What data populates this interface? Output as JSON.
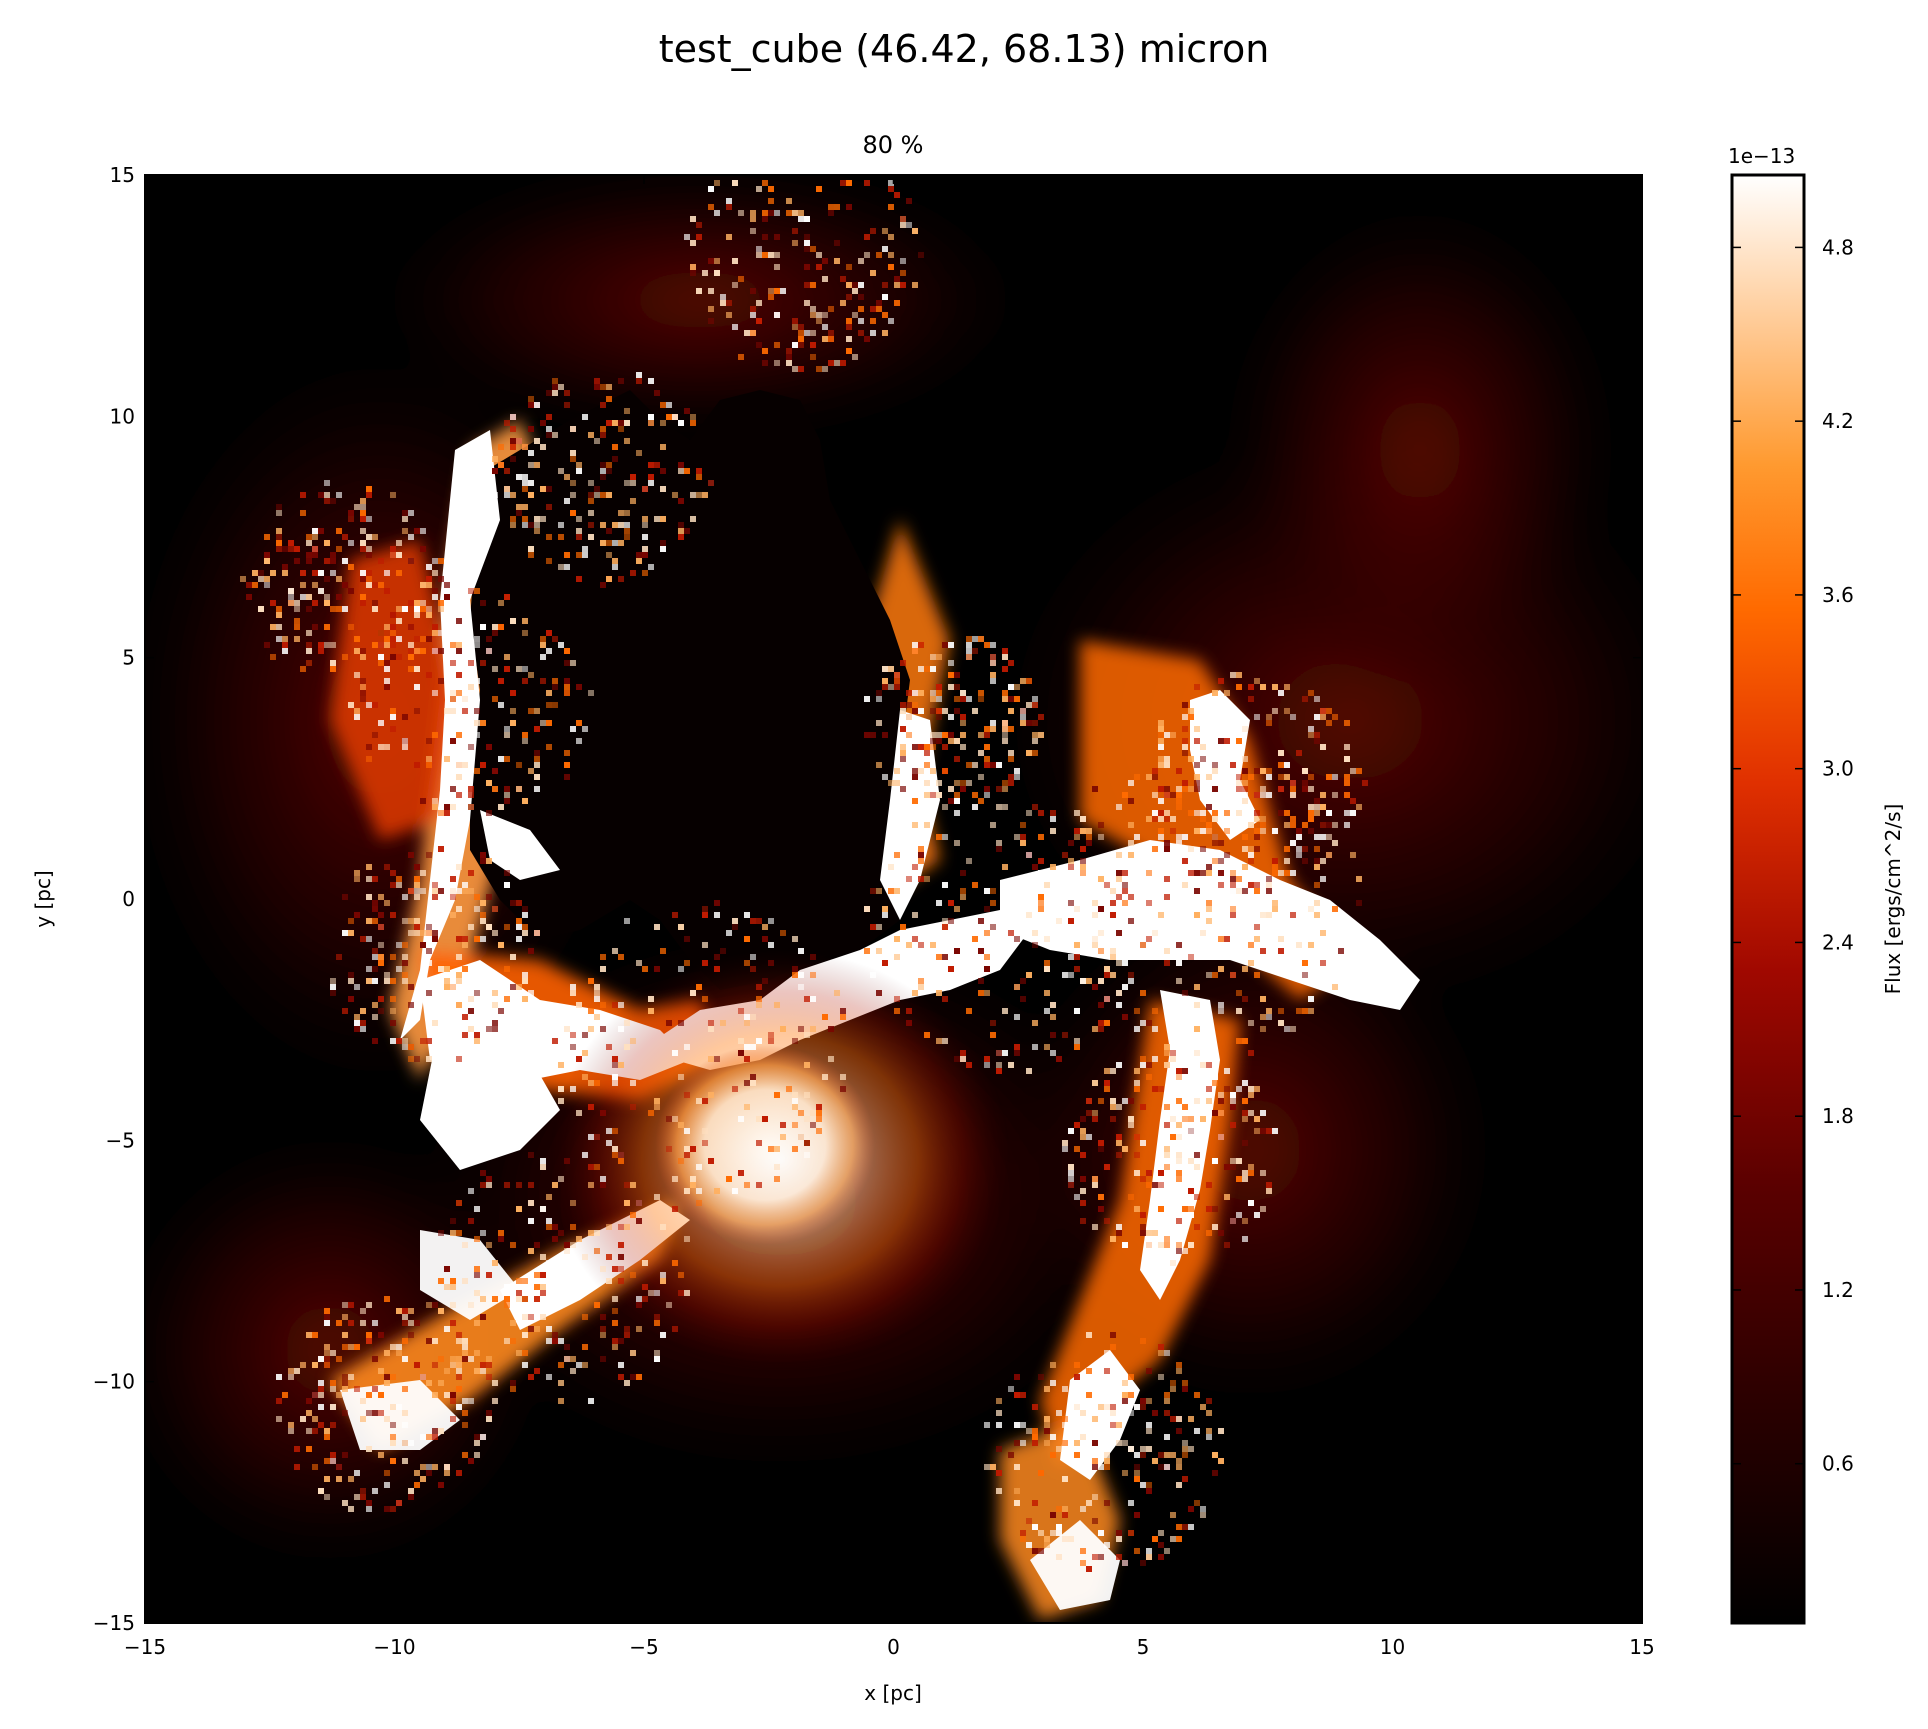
{
  "figure": {
    "suptitle": "test_cube (46.42, 68.13) micron",
    "subtitle": "80 %"
  },
  "chart_data": {
    "type": "heatmap",
    "title": "test_cube (46.42, 68.13) micron",
    "subtitle": "80 %",
    "xlabel": "x [pc]",
    "ylabel": "y [pc]",
    "xlim": [
      -15,
      15
    ],
    "ylim": [
      -15,
      15
    ],
    "x_ticks": [
      -15,
      -10,
      -5,
      0,
      5,
      10,
      15
    ],
    "x_tick_labels": [
      "−15",
      "−10",
      "−5",
      "0",
      "5",
      "10",
      "15"
    ],
    "y_ticks": [
      -15,
      -10,
      -5,
      0,
      5,
      10,
      15
    ],
    "y_tick_labels": [
      "−15",
      "−10",
      "−5",
      "0",
      "5",
      "10",
      "15"
    ],
    "colormap": "gist_heat",
    "colorbar": {
      "label": "Flux [ergs/cm^2/s]",
      "multiplier": "1e−13",
      "range": [
        0.05,
        5.05
      ],
      "ticks": [
        0.6,
        1.2,
        1.8,
        2.4,
        3.0,
        3.6,
        4.2,
        4.8
      ],
      "tick_labels": [
        "0.6",
        "1.2",
        "1.8",
        "2.4",
        "3.0",
        "3.6",
        "4.2",
        "4.8"
      ]
    },
    "features": [
      {
        "x": -4.7,
        "y": 5.0,
        "level": 0.05
      },
      {
        "x": 1.5,
        "y": -2.5,
        "level": 1.0
      },
      {
        "x": -2.5,
        "y": -5.0,
        "level": 1.0
      },
      {
        "x": -7.0,
        "y": -3.0,
        "level": 1.0
      },
      {
        "x": 7.0,
        "y": -3.0,
        "level": 1.0
      },
      {
        "x": -9.5,
        "y": 5.0,
        "level": 0.9
      }
    ]
  },
  "colors": {
    "colormap_stops": [
      "#000000",
      "#2a0000",
      "#5a0000",
      "#8a0400",
      "#c01a00",
      "#ff5a00",
      "#ff8a10",
      "#ffb070",
      "#ffe0c8",
      "#ffffff"
    ]
  }
}
